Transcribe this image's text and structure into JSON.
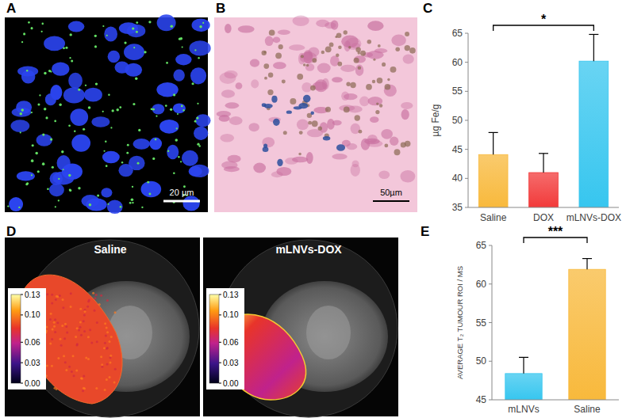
{
  "chart_data": [
    {
      "type": "bar",
      "y_label": "µg Fe/g",
      "categories": [
        "Saline",
        "DOX",
        "mLNVs-DOX"
      ],
      "values": [
        44.1,
        41.0,
        60.2
      ],
      "errors": [
        3.8,
        3.3,
        4.6
      ],
      "colors": [
        "#f8b93c",
        "#f23a3a",
        "#37c6ef"
      ],
      "ylim": [
        35,
        65
      ],
      "yticks": [
        35,
        40,
        45,
        50,
        55,
        60,
        65
      ],
      "annotations": [
        "*"
      ]
    },
    {
      "type": "bar",
      "y_label": "AVERAGE T₂ TUMOUR ROI / MS",
      "categories": [
        "mLNVs",
        "Saline"
      ],
      "values": [
        48.4,
        61.9
      ],
      "errors": [
        2.1,
        1.4
      ],
      "colors": [
        "#37c6ef",
        "#f8b93c"
      ],
      "ylim": [
        45,
        65
      ],
      "yticks": [
        45,
        50,
        55,
        60,
        65
      ],
      "annotations": [
        "***"
      ]
    }
  ],
  "figure": {
    "panel_labels": [
      "A",
      "B",
      "C",
      "D",
      "E"
    ],
    "scale_bars": [
      "20 µm",
      "50µm"
    ],
    "mri": {
      "images": [
        "Saline",
        "mLNVs-DOX"
      ],
      "colorbar": {
        "range": [
          0,
          0.13
        ],
        "ticks": [
          {
            "value": 0.13,
            "label": "0.13"
          },
          {
            "value": 0.1,
            "label": "0.10"
          },
          {
            "value": 0.06,
            "label": "0.06"
          },
          {
            "value": 0.03,
            "label": "0.03"
          },
          {
            "value": 0,
            "label": "0.00"
          }
        ]
      }
    }
  }
}
